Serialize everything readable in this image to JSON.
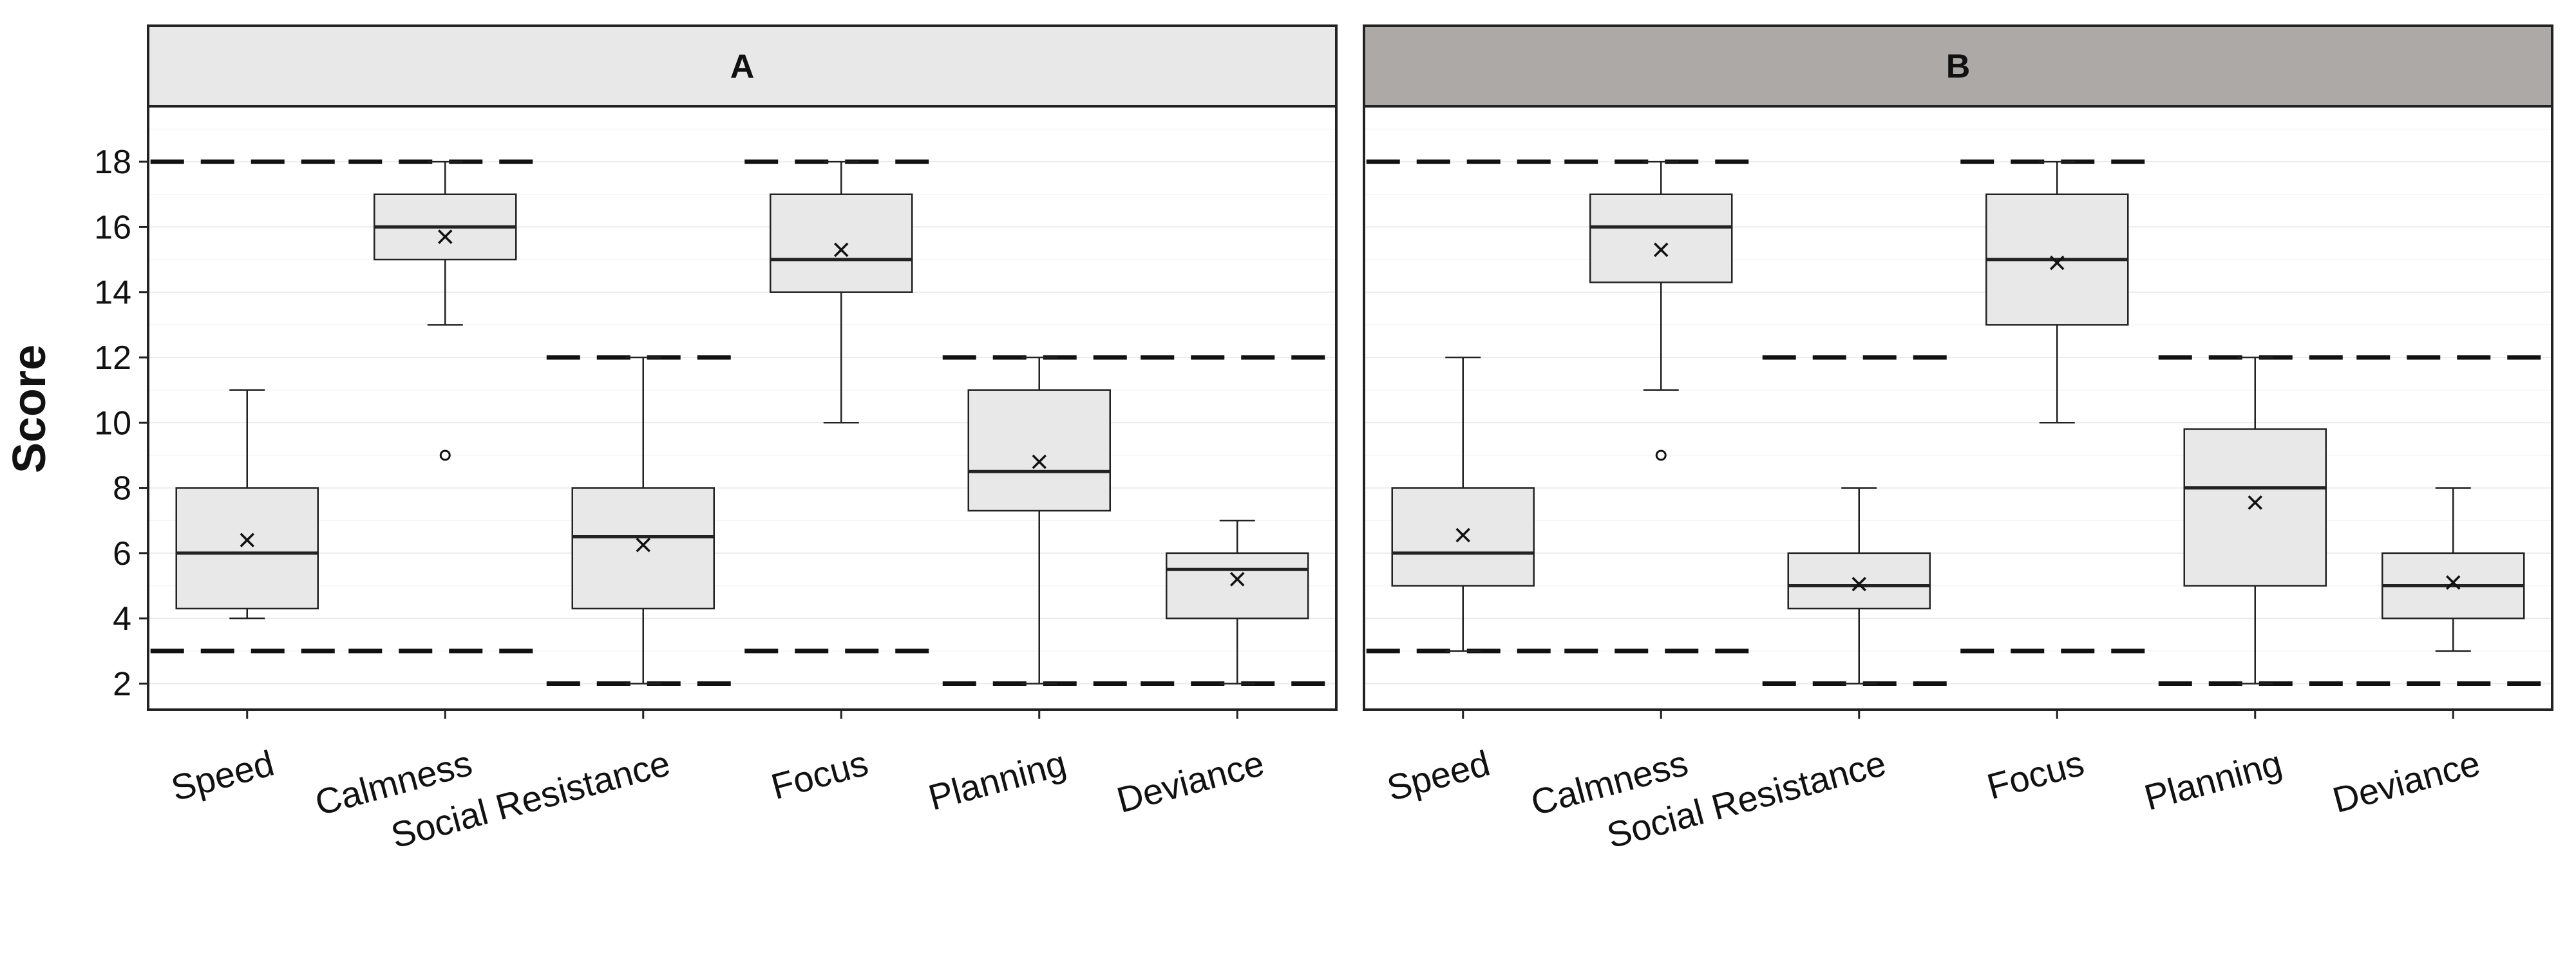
{
  "chart_data": {
    "type": "box",
    "ylabel": "Score",
    "ylim": [
      1.2,
      19.7
    ],
    "yticks": [
      2,
      4,
      6,
      8,
      10,
      12,
      14,
      16,
      18
    ],
    "grid": true,
    "categories": [
      "Speed",
      "Calmness",
      "Social Resistance",
      "Focus",
      "Planning",
      "Deviance"
    ],
    "range_limits": [
      {
        "category": "Speed",
        "min": 3,
        "max": 18
      },
      {
        "category": "Calmness",
        "min": 3,
        "max": 18
      },
      {
        "category": "Social Resistance",
        "min": 2,
        "max": 12
      },
      {
        "category": "Focus",
        "min": 3,
        "max": 18
      },
      {
        "category": "Planning",
        "min": 2,
        "max": 12
      },
      {
        "category": "Deviance",
        "min": 2,
        "max": 12
      }
    ],
    "colors": {
      "strip_a": "#e8e8e8",
      "strip_b": "#ada9a7",
      "box_fill": "#e8e8e8",
      "outline": "#222222",
      "grid": "#ebebeb"
    },
    "panels": [
      {
        "label": "A",
        "boxes": [
          {
            "category": "Speed",
            "whisker_low": 4,
            "q1": 4.3,
            "median": 6,
            "q3": 8,
            "whisker_high": 11,
            "mean": 6.4,
            "outliers": []
          },
          {
            "category": "Calmness",
            "whisker_low": 13,
            "q1": 15,
            "median": 16,
            "q3": 17,
            "whisker_high": 18,
            "mean": 15.7,
            "outliers": [
              9
            ]
          },
          {
            "category": "Social Resistance",
            "whisker_low": 2,
            "q1": 4.3,
            "median": 6.5,
            "q3": 8,
            "whisker_high": 12,
            "mean": 6.25,
            "outliers": []
          },
          {
            "category": "Focus",
            "whisker_low": 10,
            "q1": 14,
            "median": 15,
            "q3": 17,
            "whisker_high": 18,
            "mean": 15.3,
            "outliers": []
          },
          {
            "category": "Planning",
            "whisker_low": 2,
            "q1": 7.3,
            "median": 8.5,
            "q3": 11,
            "whisker_high": 12,
            "mean": 8.8,
            "outliers": []
          },
          {
            "category": "Deviance",
            "whisker_low": 2,
            "q1": 4,
            "median": 5.5,
            "q3": 6,
            "whisker_high": 7,
            "mean": 5.2,
            "outliers": []
          }
        ]
      },
      {
        "label": "B",
        "boxes": [
          {
            "category": "Speed",
            "whisker_low": 3,
            "q1": 5,
            "median": 6,
            "q3": 8,
            "whisker_high": 12,
            "mean": 6.55,
            "outliers": []
          },
          {
            "category": "Calmness",
            "whisker_low": 11,
            "q1": 14.3,
            "median": 16,
            "q3": 17,
            "whisker_high": 18,
            "mean": 15.3,
            "outliers": [
              9
            ]
          },
          {
            "category": "Social Resistance",
            "whisker_low": 2,
            "q1": 4.3,
            "median": 5,
            "q3": 6,
            "whisker_high": 8,
            "mean": 5.05,
            "outliers": []
          },
          {
            "category": "Focus",
            "whisker_low": 10,
            "q1": 13,
            "median": 15,
            "q3": 17,
            "whisker_high": 18,
            "mean": 14.9,
            "outliers": []
          },
          {
            "category": "Planning",
            "whisker_low": 2,
            "q1": 5,
            "median": 8,
            "q3": 9.8,
            "whisker_high": 12,
            "mean": 7.55,
            "outliers": []
          },
          {
            "category": "Deviance",
            "whisker_low": 3,
            "q1": 4,
            "median": 5,
            "q3": 6,
            "whisker_high": 8,
            "mean": 5.1,
            "outliers": []
          }
        ]
      }
    ]
  }
}
